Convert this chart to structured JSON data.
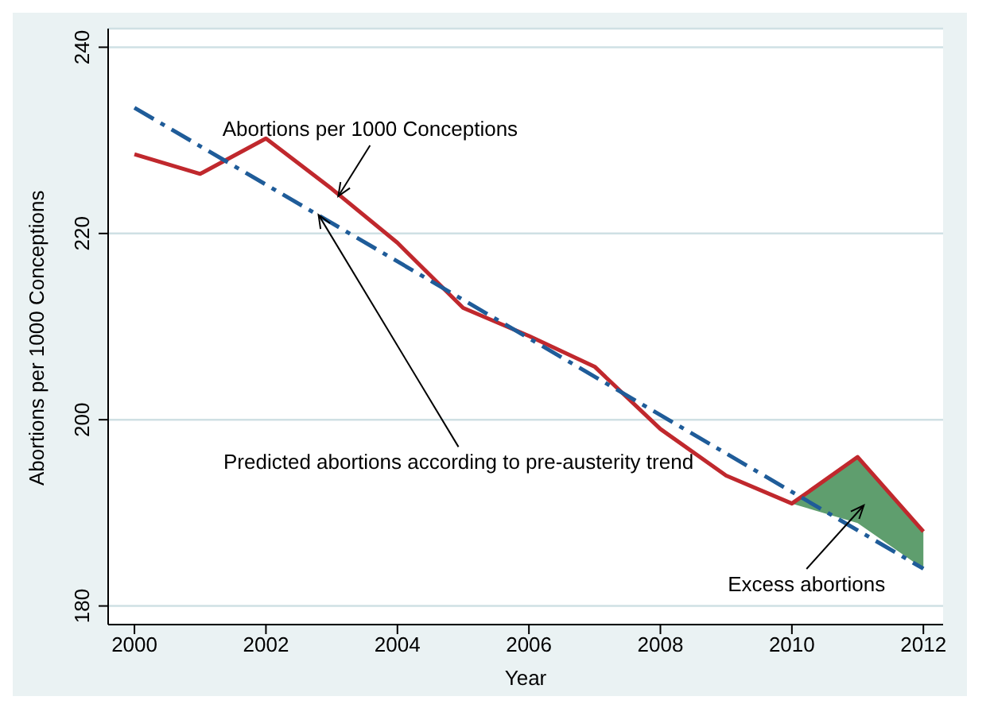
{
  "chart_data": {
    "type": "line",
    "xlabel": "Year",
    "ylabel": "Abortions per 1000 Conceptions",
    "x": [
      2000,
      2001,
      2002,
      2003,
      2004,
      2005,
      2006,
      2007,
      2008,
      2009,
      2010,
      2011,
      2012
    ],
    "series": [
      {
        "type": "line",
        "color": "#c0282d",
        "line_style": "solid",
        "values": [
          228.5,
          226.4,
          230.2,
          224.8,
          219,
          212,
          209,
          205.7,
          199,
          194,
          191,
          196,
          188
        ],
        "lower": [
          null,
          null,
          null,
          null,
          null,
          null,
          null,
          null,
          null,
          null,
          191,
          188.9,
          184
        ],
        "upper": [
          null,
          null,
          null,
          null,
          null,
          null,
          null,
          null,
          null,
          null,
          191,
          196,
          188
        ]
      },
      {
        "type": "line",
        "color": "#1f5c99",
        "line_style": "dashed",
        "x": [
          2000,
          2012
        ],
        "values": [
          233.5,
          184
        ]
      }
    ],
    "annotations": [
      {
        "text": "Abortions per 1000 Conceptions",
        "x": 2003.1,
        "y": 224
      },
      {
        "text": "Predicted abortions according to pre-austerity trend",
        "x": 2002.8,
        "y": 222
      },
      "Excess abortions"
    ],
    "xlim": [
      1999.6,
      2012.3
    ],
    "xticks": [
      2000,
      2002,
      2004,
      2006,
      2008,
      2010,
      2012
    ],
    "ylim": [
      178,
      242
    ],
    "yticks": [
      180,
      200,
      220,
      240
    ],
    "grid": "y",
    "marker": "none"
  }
}
